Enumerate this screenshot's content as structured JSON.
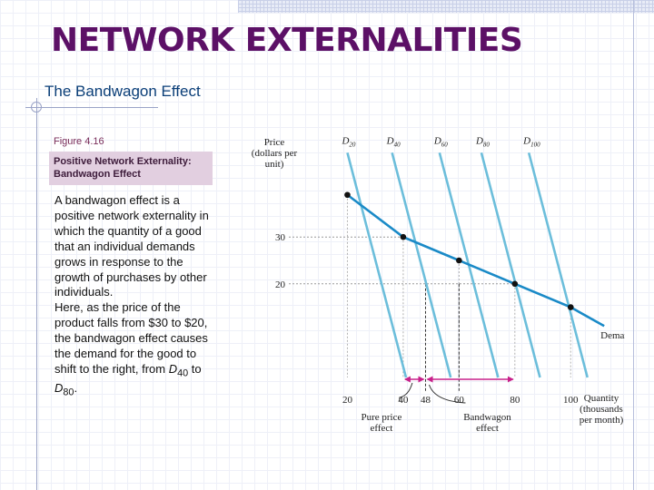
{
  "slide": {
    "title": "NETWORK EXTERNALITIES",
    "subtitle": "The Bandwagon Effect"
  },
  "figure": {
    "number": "Figure 4.16",
    "caption": "Positive Network Externality: Bandwagon Effect"
  },
  "text": {
    "para1": "A bandwagon effect is a positive network externality in which the quantity of a good that an individual demands grows in response to the growth of purchases by other individuals.",
    "para2_lead": "Here, as the price of the product falls from $30 to $20, the bandwagon effect causes the demand for the good to shift to the right, from ",
    "d40_main": "D",
    "d40_sub": "40",
    "to_word": " to ",
    "d80_main": "D",
    "d80_sub": "80",
    "end": "."
  },
  "chart_data": {
    "type": "line",
    "ylabel_lines": [
      "Price",
      "(dollars per",
      "unit)"
    ],
    "xlabel_lines": [
      "Quantity",
      "(thousands",
      "per month)"
    ],
    "y_ticks": [
      "30",
      "20"
    ],
    "x_ticks": [
      "20",
      "40",
      "48",
      "60",
      "80",
      "100"
    ],
    "xlim": [
      0,
      110
    ],
    "ylim": [
      0,
      50
    ],
    "demand_curves": [
      {
        "name_main": "D",
        "name_sub": "20",
        "points": [
          [
            20,
            48
          ],
          [
            41,
            0
          ]
        ]
      },
      {
        "name_main": "D",
        "name_sub": "40",
        "points": [
          [
            36,
            48
          ],
          [
            57,
            0
          ]
        ]
      },
      {
        "name_main": "D",
        "name_sub": "60",
        "points": [
          [
            53,
            48
          ],
          [
            74,
            0
          ]
        ]
      },
      {
        "name_main": "D",
        "name_sub": "80",
        "points": [
          [
            68,
            48
          ],
          [
            89,
            0
          ]
        ]
      },
      {
        "name_main": "D",
        "name_sub": "100",
        "points": [
          [
            85,
            48
          ],
          [
            106,
            0
          ]
        ]
      }
    ],
    "market_demand": {
      "label": "Demand",
      "points": [
        [
          20,
          39
        ],
        [
          40,
          30
        ],
        [
          60,
          25
        ],
        [
          80,
          20
        ],
        [
          100,
          15
        ],
        [
          112,
          11
        ]
      ]
    },
    "equilibria": [
      [
        20,
        39
      ],
      [
        40,
        30
      ],
      [
        60,
        25
      ],
      [
        80,
        20
      ],
      [
        100,
        15
      ]
    ],
    "reference_lines": {
      "y": [
        30,
        20
      ],
      "x": [
        48,
        60
      ]
    },
    "annotations": [
      {
        "text_lines": [
          "Pure price",
          "effect"
        ],
        "from": 40,
        "to": 48
      },
      {
        "text_lines": [
          "Bandwagon",
          "effect"
        ],
        "from": 48,
        "to": 80
      }
    ],
    "colors": {
      "demand_curves": "#6cbedb",
      "market_demand": "#1a8ac7",
      "arrows": "#c8208a",
      "points": "#111111"
    }
  }
}
